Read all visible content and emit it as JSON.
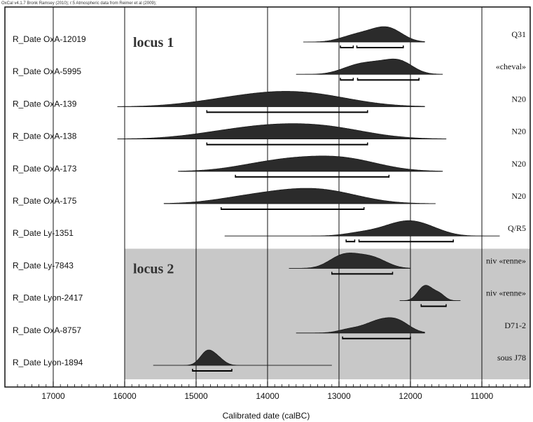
{
  "chart_data": {
    "type": "distribution",
    "header": "OxCal v4.1.7 Bronk Ramsey (2010); r:5 Atmospheric data from Reimer et al (2009);",
    "xlabel": "Calibrated date (calBC)",
    "xlim": [
      17500,
      10300
    ],
    "xticks": [
      17000,
      16000,
      15000,
      14000,
      13000,
      12000,
      11000
    ],
    "shaded_from_row": 7,
    "locus_labels": [
      {
        "text": "locus 1",
        "row": 0
      },
      {
        "text": "locus 2",
        "row": 7
      }
    ],
    "dates": [
      {
        "label": "R_Date OxA-12019",
        "note": "Q31",
        "range": [
          13500,
          11800
        ],
        "peaks": [
          [
            12900,
            0.3
          ],
          [
            12700,
            0.55
          ],
          [
            12450,
            0.85
          ],
          [
            12250,
            1.0
          ]
        ],
        "spread": 180,
        "ranges95": [
          [
            12980,
            12800
          ],
          [
            12750,
            12100
          ]
        ]
      },
      {
        "label": "R_Date OxA-5995",
        "note": "«cheval»",
        "range": [
          13600,
          11550
        ],
        "peaks": [
          [
            12900,
            0.25
          ],
          [
            12700,
            0.5
          ],
          [
            12450,
            0.6
          ],
          [
            12150,
            1.0
          ]
        ],
        "spread": 190,
        "ranges95": [
          [
            12980,
            12800
          ],
          [
            12740,
            11880
          ]
        ]
      },
      {
        "label": "R_Date OxA-139",
        "note": "N20",
        "range": [
          16100,
          11800
        ],
        "peaks": [
          [
            14700,
            0.5
          ],
          [
            14000,
            0.95
          ],
          [
            13400,
            0.85
          ],
          [
            12900,
            0.3
          ]
        ],
        "spread": 520,
        "ranges95": [
          [
            14850,
            12600
          ]
        ]
      },
      {
        "label": "R_Date OxA-138",
        "note": "N20",
        "range": [
          16100,
          11500
        ],
        "peaks": [
          [
            14700,
            0.45
          ],
          [
            14000,
            0.9
          ],
          [
            13300,
            0.85
          ],
          [
            12800,
            0.35
          ]
        ],
        "spread": 520,
        "ranges95": [
          [
            14850,
            12600
          ]
        ]
      },
      {
        "label": "R_Date OxA-173",
        "note": "N20",
        "range": [
          15250,
          11550
        ],
        "peaks": [
          [
            14200,
            0.45
          ],
          [
            13650,
            0.85
          ],
          [
            13050,
            0.95
          ],
          [
            12600,
            0.45
          ]
        ],
        "spread": 420,
        "ranges95": [
          [
            14450,
            12300
          ]
        ]
      },
      {
        "label": "R_Date OxA-175",
        "note": "N20",
        "range": [
          15450,
          11650
        ],
        "peaks": [
          [
            14400,
            0.5
          ],
          [
            13800,
            0.85
          ],
          [
            13250,
            1.0
          ],
          [
            12800,
            0.35
          ]
        ],
        "spread": 430,
        "ranges95": [
          [
            14650,
            12650
          ]
        ]
      },
      {
        "label": "R_Date Ly-1351",
        "note": "Q/R5",
        "range": [
          14600,
          10750
        ],
        "peaks": [
          [
            12700,
            0.3
          ],
          [
            12300,
            0.6
          ],
          [
            12000,
            1.0
          ],
          [
            11700,
            0.5
          ]
        ],
        "spread": 230,
        "ranges95": [
          [
            12900,
            12780
          ],
          [
            12720,
            11400
          ]
        ]
      },
      {
        "label": "R_Date Ly-7843",
        "note": "niv «renne»",
        "range": [
          13700,
          12000
        ],
        "peaks": [
          [
            13050,
            0.65
          ],
          [
            12850,
            0.95
          ],
          [
            12600,
            0.8
          ],
          [
            12400,
            0.45
          ]
        ],
        "spread": 160,
        "ranges95": [
          [
            13100,
            12250
          ]
        ]
      },
      {
        "label": "R_Date Lyon-2417",
        "note": "niv «renne»",
        "range": [
          12150,
          11300
        ],
        "peaks": [
          [
            11850,
            0.85
          ],
          [
            11750,
            1.0
          ],
          [
            11600,
            0.7
          ]
        ],
        "spread": 80,
        "ranges95": [
          [
            11850,
            11500
          ]
        ]
      },
      {
        "label": "R_Date OxA-8757",
        "note": "D71-2",
        "range": [
          13600,
          11800
        ],
        "peaks": [
          [
            12850,
            0.4
          ],
          [
            12550,
            0.7
          ],
          [
            12350,
            0.85
          ],
          [
            12150,
            1.0
          ]
        ],
        "spread": 160,
        "ranges95": [
          [
            12950,
            12000
          ]
        ]
      },
      {
        "label": "R_Date Lyon-1894",
        "note": "sous J78",
        "range": [
          15600,
          13100
        ],
        "peaks": [
          [
            14850,
            1.0
          ],
          [
            14700,
            0.5
          ]
        ],
        "spread": 95,
        "ranges95": [
          [
            15050,
            14500
          ]
        ]
      }
    ]
  }
}
